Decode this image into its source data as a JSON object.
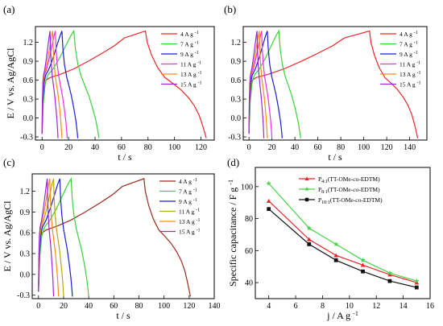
{
  "chart_data": [
    {
      "panel": "(a)",
      "type": "line",
      "xlabel": "t / s",
      "ylabel": "E / V vs. Ag/AgCl",
      "xlim": [
        -5,
        130
      ],
      "ylim": [
        -0.35,
        1.45
      ],
      "xticks": [
        0,
        20,
        40,
        60,
        80,
        100,
        120
      ],
      "yticks": [
        -0.3,
        0.0,
        0.3,
        0.6,
        0.9,
        1.2
      ],
      "legend_position": "top-right",
      "series": [
        {
          "name": "4 A g",
          "sup": "-1",
          "color": "#e8262b",
          "peak": 78,
          "end": 124,
          "curve": "slow"
        },
        {
          "name": "7 A g",
          "sup": "-1",
          "color": "#3ad13a",
          "peak": 24,
          "end": 43,
          "curve": "fast"
        },
        {
          "name": "9 A g",
          "sup": "-1",
          "color": "#1c1cd6",
          "peak": 15,
          "end": 27,
          "curve": "fast"
        },
        {
          "name": "11 A g",
          "sup": "-1",
          "color": "#ee2ee8",
          "peak": 10,
          "end": 19,
          "curve": "fast"
        },
        {
          "name": "13 A g",
          "sup": "-1",
          "color": "#ff8a1c",
          "peak": 8,
          "end": 15,
          "curve": "fast"
        },
        {
          "name": "15 A g",
          "sup": "-1",
          "color": "#9b27d8",
          "peak": 6,
          "end": 12,
          "curve": "fast"
        }
      ]
    },
    {
      "panel": "(b)",
      "type": "line",
      "xlabel": "t / s",
      "ylabel": "",
      "xlim": [
        -5,
        155
      ],
      "ylim": [
        -0.35,
        1.45
      ],
      "xticks": [
        0,
        20,
        40,
        60,
        80,
        100,
        120,
        140
      ],
      "yticks": [
        -0.3,
        0.0,
        0.3,
        0.6,
        0.9,
        1.2
      ],
      "legend_position": "top-right",
      "series": [
        {
          "name": "4 A g",
          "sup": "-1",
          "color": "#e8262b",
          "peak": 105,
          "end": 147,
          "curve": "slow"
        },
        {
          "name": "7 A g",
          "sup": "-1",
          "color": "#3ad13a",
          "peak": 26,
          "end": 45,
          "curve": "fast"
        },
        {
          "name": "9 A g",
          "sup": "-1",
          "color": "#1c1cd6",
          "peak": 16,
          "end": 29,
          "curve": "fast"
        },
        {
          "name": "11 A g",
          "sup": "-1",
          "color": "#ee2ee8",
          "peak": 11,
          "end": 20,
          "curve": "fast"
        },
        {
          "name": "13 A g",
          "sup": "-1",
          "color": "#ff8a1c",
          "peak": 9,
          "end": 16,
          "curve": "fast"
        },
        {
          "name": "15 A g",
          "sup": "-1",
          "color": "#9b27d8",
          "peak": 7,
          "end": 13,
          "curve": "fast"
        }
      ]
    },
    {
      "panel": "(c)",
      "type": "line",
      "xlabel": "t / s",
      "ylabel": "E / V vs. Ag/AgCl",
      "xlim": [
        -5,
        140
      ],
      "ylim": [
        -0.35,
        1.45
      ],
      "xticks": [
        0,
        20,
        40,
        60,
        80,
        100,
        120,
        140
      ],
      "yticks": [
        -0.3,
        0.0,
        0.3,
        0.6,
        0.9,
        1.2
      ],
      "legend_position": "top-right",
      "series": [
        {
          "name": "4 A g",
          "sup": "-1",
          "color": "#9b2a1a",
          "peak": 84,
          "end": 121,
          "curve": "slow"
        },
        {
          "name": "7 A g",
          "sup": "-1",
          "color": "#3ad13a",
          "peak": 26,
          "end": 40,
          "curve": "fast"
        },
        {
          "name": "9 A g",
          "sup": "-1",
          "color": "#1c1cd6",
          "peak": 17,
          "end": 27,
          "curve": "fast"
        },
        {
          "name": "11 A g",
          "sup": "-1",
          "color": "#b8a414",
          "peak": 12,
          "end": 20,
          "curve": "fast"
        },
        {
          "name": "13 A g",
          "sup": "-1",
          "color": "#ff8a1c",
          "peak": 9,
          "end": 16,
          "curve": "fast"
        },
        {
          "name": "15 A g",
          "sup": "-1",
          "color": "#9b27d8",
          "peak": 7,
          "end": 12,
          "curve": "fast"
        }
      ]
    },
    {
      "panel": "(d)",
      "type": "line",
      "xlabel": "j / A g",
      "xlabel_sup": "-1",
      "ylabel": "Specific capacitance / F g",
      "ylabel_sup": "-1",
      "xlim": [
        3,
        16
      ],
      "ylim": [
        30,
        112
      ],
      "xticks": [
        4,
        6,
        8,
        10,
        12,
        14,
        16
      ],
      "yticks": [
        40,
        60,
        80,
        100
      ],
      "legend_position": "top-right",
      "x": [
        4,
        7,
        9,
        11,
        13,
        15
      ],
      "series": [
        {
          "name_main": "P",
          "name_sub": "4:1",
          "name_pre": "(TT-OMe-",
          "name_ital": "co",
          "name_post": "-EDTM)",
          "color": "#e8262b",
          "marker": "triangle",
          "values": [
            91,
            67,
            57,
            51,
            45,
            40
          ]
        },
        {
          "name_main": "P",
          "name_sub": "8:1",
          "name_pre": "(TT-OMe-",
          "name_ital": "co",
          "name_post": "-EDTM)",
          "color": "#4ad04a",
          "marker": "star",
          "values": [
            102,
            74,
            64,
            54,
            46,
            41
          ]
        },
        {
          "name_main": "P",
          "name_sub": "10:1",
          "name_pre": "(TT-OMe-",
          "name_ital": "co",
          "name_post": "-EDTM)",
          "color": "#111111",
          "marker": "square",
          "values": [
            86,
            64,
            54,
            47,
            41,
            37
          ]
        }
      ]
    }
  ]
}
